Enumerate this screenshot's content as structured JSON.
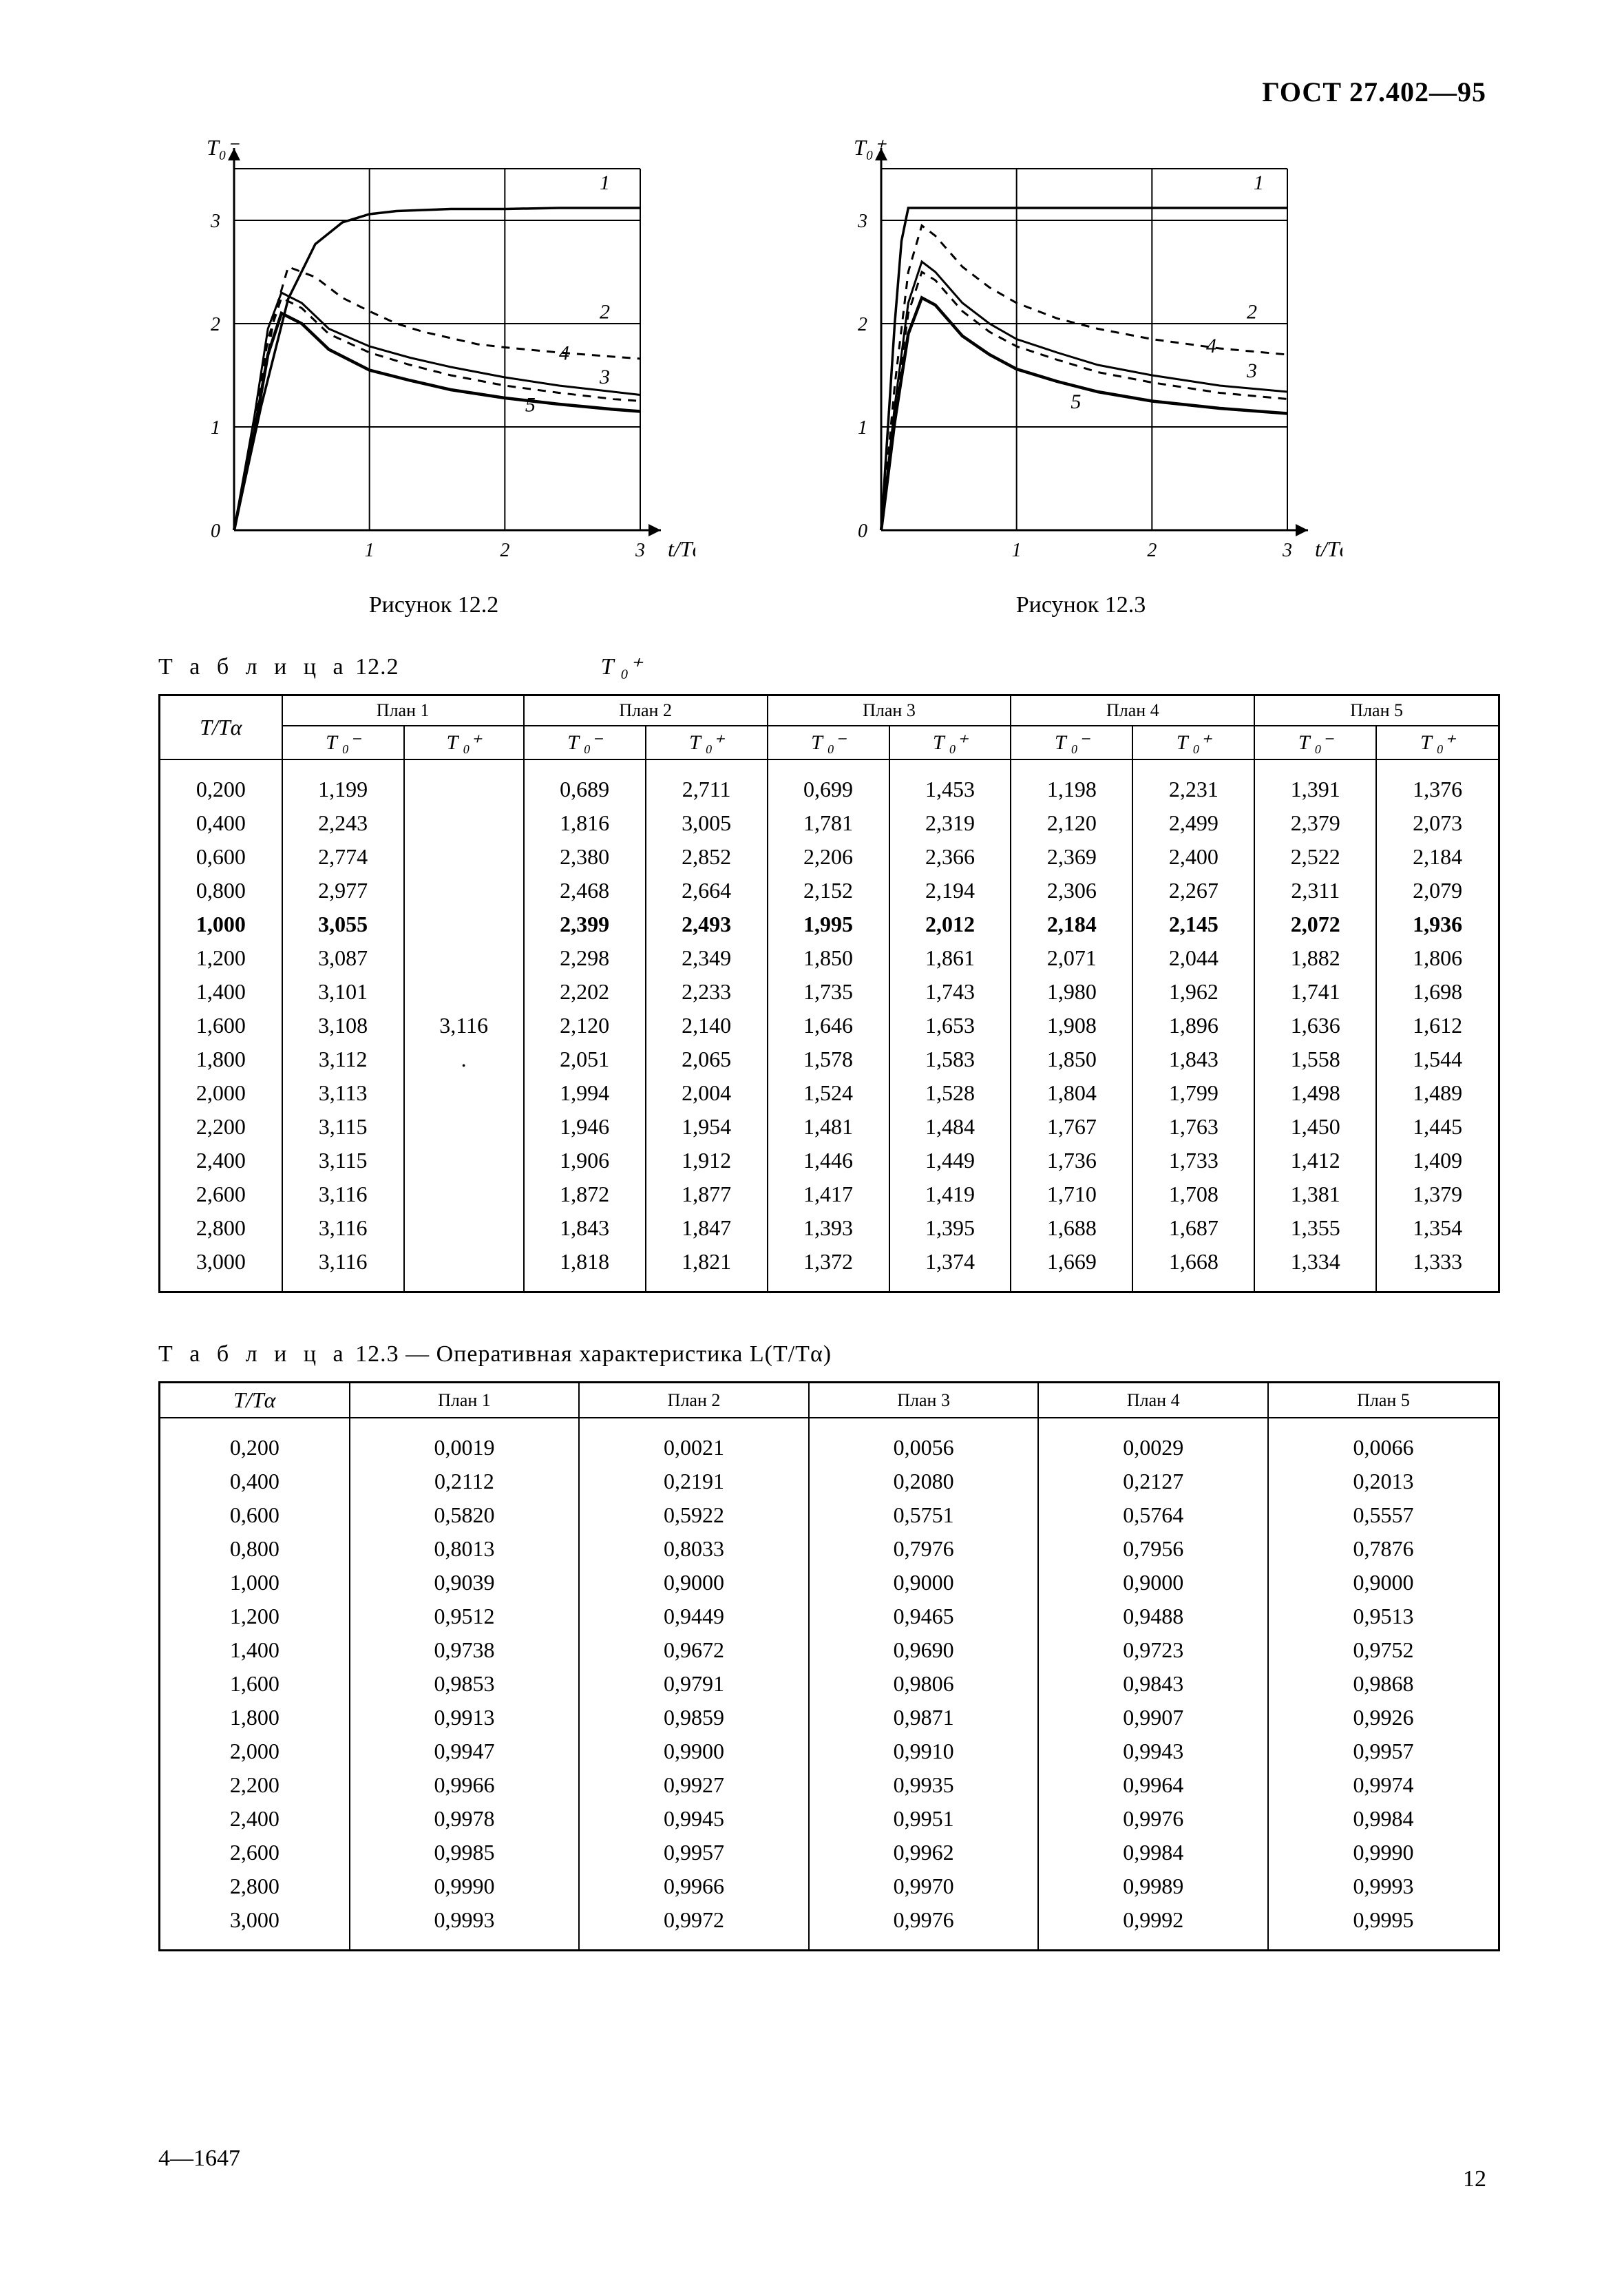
{
  "doc_id": "ГОСТ 27.402—95",
  "footer_left": "4—1647",
  "footer_page": "12",
  "chart_left": {
    "caption": "Рисунок 12.2",
    "y_label": "T₀⁻",
    "x_label": "t/Tα",
    "xlim": [
      0,
      3
    ],
    "ylim": [
      0,
      3.6
    ],
    "xticks": [
      0,
      1,
      2,
      3
    ],
    "yticks": [
      0,
      1,
      2,
      3
    ],
    "fontsize_axis": 28,
    "fontsize_curve_label": 30,
    "stroke_color": "#000000",
    "stroke_width": 3,
    "curves": [
      {
        "label": "1",
        "dash": "",
        "width": 3.5,
        "x": [
          0.0,
          0.2,
          0.4,
          0.6,
          0.8,
          1.0,
          1.2,
          1.4,
          1.6,
          1.8,
          2.0,
          2.4,
          2.8,
          3.0
        ],
        "y": [
          0.0,
          1.2,
          2.24,
          2.77,
          2.98,
          3.06,
          3.09,
          3.1,
          3.11,
          3.11,
          3.11,
          3.12,
          3.12,
          3.12
        ],
        "label_at": [
          2.7,
          3.3
        ]
      },
      {
        "label": "2",
        "dash": "12 10",
        "width": 3,
        "x": [
          0.0,
          0.2,
          0.3,
          0.4,
          0.6,
          0.8,
          1.0,
          1.2,
          1.4,
          1.6,
          1.8,
          2.0,
          2.4,
          2.8,
          3.0
        ],
        "y": [
          0.0,
          1.3,
          2.1,
          2.55,
          2.45,
          2.25,
          2.12,
          2.0,
          1.92,
          1.86,
          1.8,
          1.77,
          1.72,
          1.68,
          1.66
        ],
        "label_at": [
          2.7,
          2.05
        ]
      },
      {
        "label": "3",
        "dash": "",
        "width": 3,
        "x": [
          0.0,
          0.15,
          0.25,
          0.35,
          0.5,
          0.7,
          1.0,
          1.3,
          1.6,
          2.0,
          2.4,
          2.8,
          3.0
        ],
        "y": [
          0.0,
          1.1,
          1.95,
          2.3,
          2.2,
          1.95,
          1.78,
          1.67,
          1.58,
          1.48,
          1.4,
          1.34,
          1.31
        ],
        "label_at": [
          2.7,
          1.42
        ]
      },
      {
        "label": "4",
        "dash": "12 10",
        "width": 3,
        "x": [
          0.0,
          0.15,
          0.25,
          0.35,
          0.5,
          0.7,
          1.0,
          1.3,
          1.6,
          2.0,
          2.4,
          2.8,
          3.0
        ],
        "y": [
          0.0,
          1.05,
          1.85,
          2.25,
          2.15,
          1.9,
          1.72,
          1.6,
          1.5,
          1.4,
          1.33,
          1.27,
          1.25
        ],
        "label_at": [
          2.4,
          1.65
        ]
      },
      {
        "label": "5",
        "dash": "",
        "width": 4.5,
        "x": [
          0.0,
          0.15,
          0.25,
          0.35,
          0.5,
          0.7,
          1.0,
          1.3,
          1.6,
          2.0,
          2.4,
          2.8,
          3.0
        ],
        "y": [
          0.0,
          0.95,
          1.7,
          2.1,
          2.0,
          1.75,
          1.55,
          1.45,
          1.36,
          1.28,
          1.22,
          1.17,
          1.15
        ],
        "label_at": [
          2.15,
          1.15
        ]
      }
    ]
  },
  "chart_right": {
    "caption": "Рисунок 12.3",
    "y_label": "T₀⁺",
    "x_label": "t/Tα",
    "xlim": [
      0,
      3
    ],
    "ylim": [
      0,
      3.6
    ],
    "xticks": [
      0,
      1,
      2,
      3
    ],
    "yticks": [
      0,
      1,
      2,
      3
    ],
    "fontsize_axis": 28,
    "fontsize_curve_label": 30,
    "stroke_color": "#000000",
    "stroke_width": 3,
    "curves": [
      {
        "label": "1",
        "dash": "",
        "width": 3.5,
        "x": [
          0.0,
          0.1,
          0.15,
          0.2,
          3.0
        ],
        "y": [
          0.0,
          2.0,
          2.8,
          3.12,
          3.12
        ],
        "label_at": [
          2.75,
          3.3
        ]
      },
      {
        "label": "2",
        "dash": "12 10",
        "width": 3,
        "x": [
          0.0,
          0.1,
          0.2,
          0.3,
          0.4,
          0.6,
          0.8,
          1.0,
          1.3,
          1.6,
          2.0,
          2.5,
          3.0
        ],
        "y": [
          0.0,
          1.4,
          2.5,
          2.95,
          2.85,
          2.55,
          2.35,
          2.2,
          2.05,
          1.95,
          1.85,
          1.76,
          1.7
        ],
        "label_at": [
          2.7,
          2.05
        ]
      },
      {
        "label": "3",
        "dash": "",
        "width": 3,
        "x": [
          0.0,
          0.1,
          0.2,
          0.3,
          0.4,
          0.6,
          0.8,
          1.0,
          1.3,
          1.6,
          2.0,
          2.5,
          3.0
        ],
        "y": [
          0.0,
          1.2,
          2.2,
          2.6,
          2.5,
          2.2,
          2.0,
          1.85,
          1.72,
          1.6,
          1.5,
          1.4,
          1.34
        ],
        "label_at": [
          2.7,
          1.48
        ]
      },
      {
        "label": "4",
        "dash": "12 10",
        "width": 3,
        "x": [
          0.0,
          0.1,
          0.2,
          0.3,
          0.4,
          0.6,
          0.8,
          1.0,
          1.3,
          1.6,
          2.0,
          2.5,
          3.0
        ],
        "y": [
          0.0,
          1.15,
          2.1,
          2.5,
          2.42,
          2.12,
          1.92,
          1.78,
          1.65,
          1.53,
          1.43,
          1.33,
          1.27
        ],
        "label_at": [
          2.4,
          1.72
        ]
      },
      {
        "label": "5",
        "dash": "",
        "width": 4.5,
        "x": [
          0.0,
          0.1,
          0.2,
          0.3,
          0.4,
          0.6,
          0.8,
          1.0,
          1.3,
          1.6,
          2.0,
          2.5,
          3.0
        ],
        "y": [
          0.0,
          1.05,
          1.9,
          2.25,
          2.18,
          1.88,
          1.7,
          1.56,
          1.44,
          1.34,
          1.25,
          1.18,
          1.13
        ],
        "label_at": [
          1.4,
          1.18
        ]
      }
    ]
  },
  "table122": {
    "caption_spaced": "Т а б л и ц а",
    "caption_rest": " 12.2",
    "top_sym": "T ₀⁺",
    "head_first": "T/Tα",
    "plans": [
      "План 1",
      "План 2",
      "План 3",
      "План 4",
      "План 5"
    ],
    "sub": [
      "T ₀⁻",
      "T ₀⁺"
    ],
    "bold_row_index": 4,
    "rows": [
      [
        "0,200",
        "1,199",
        "",
        "0,689",
        "2,711",
        "0,699",
        "1,453",
        "1,198",
        "2,231",
        "1,391",
        "1,376"
      ],
      [
        "0,400",
        "2,243",
        "",
        "1,816",
        "3,005",
        "1,781",
        "2,319",
        "2,120",
        "2,499",
        "2,379",
        "2,073"
      ],
      [
        "0,600",
        "2,774",
        "",
        "2,380",
        "2,852",
        "2,206",
        "2,366",
        "2,369",
        "2,400",
        "2,522",
        "2,184"
      ],
      [
        "0,800",
        "2,977",
        "",
        "2,468",
        "2,664",
        "2,152",
        "2,194",
        "2,306",
        "2,267",
        "2,311",
        "2,079"
      ],
      [
        "1,000",
        "3,055",
        "",
        "2,399",
        "2,493",
        "1,995",
        "2,012",
        "2,184",
        "2,145",
        "2,072",
        "1,936"
      ],
      [
        "1,200",
        "3,087",
        "",
        "2,298",
        "2,349",
        "1,850",
        "1,861",
        "2,071",
        "2,044",
        "1,882",
        "1,806"
      ],
      [
        "1,400",
        "3,101",
        "",
        "2,202",
        "2,233",
        "1,735",
        "1,743",
        "1,980",
        "1,962",
        "1,741",
        "1,698"
      ],
      [
        "1,600",
        "3,108",
        "3,116",
        "2,120",
        "2,140",
        "1,646",
        "1,653",
        "1,908",
        "1,896",
        "1,636",
        "1,612"
      ],
      [
        "1,800",
        "3,112",
        ".",
        "2,051",
        "2,065",
        "1,578",
        "1,583",
        "1,850",
        "1,843",
        "1,558",
        "1,544"
      ],
      [
        "2,000",
        "3,113",
        "",
        "1,994",
        "2,004",
        "1,524",
        "1,528",
        "1,804",
        "1,799",
        "1,498",
        "1,489"
      ],
      [
        "2,200",
        "3,115",
        "",
        "1,946",
        "1,954",
        "1,481",
        "1,484",
        "1,767",
        "1,763",
        "1,450",
        "1,445"
      ],
      [
        "2,400",
        "3,115",
        "",
        "1,906",
        "1,912",
        "1,446",
        "1,449",
        "1,736",
        "1,733",
        "1,412",
        "1,409"
      ],
      [
        "2,600",
        "3,116",
        "",
        "1,872",
        "1,877",
        "1,417",
        "1,419",
        "1,710",
        "1,708",
        "1,381",
        "1,379"
      ],
      [
        "2,800",
        "3,116",
        "",
        "1,843",
        "1,847",
        "1,393",
        "1,395",
        "1,688",
        "1,687",
        "1,355",
        "1,354"
      ],
      [
        "3,000",
        "3,116",
        "",
        "1,818",
        "1,821",
        "1,372",
        "1,374",
        "1,669",
        "1,668",
        "1,334",
        "1,333"
      ]
    ]
  },
  "table123": {
    "caption_spaced": "Т а б л и ц а",
    "caption_rest": " 12.3 — Оперативная характеристика L(T/Tα)",
    "head_first": "T/Tα",
    "plans": [
      "План 1",
      "План 2",
      "План 3",
      "План 4",
      "План 5"
    ],
    "rows": [
      [
        "0,200",
        "0,0019",
        "0,0021",
        "0,0056",
        "0,0029",
        "0,0066"
      ],
      [
        "0,400",
        "0,2112",
        "0,2191",
        "0,2080",
        "0,2127",
        "0,2013"
      ],
      [
        "0,600",
        "0,5820",
        "0,5922",
        "0,5751",
        "0,5764",
        "0,5557"
      ],
      [
        "0,800",
        "0,8013",
        "0,8033",
        "0,7976",
        "0,7956",
        "0,7876"
      ],
      [
        "1,000",
        "0,9039",
        "0,9000",
        "0,9000",
        "0,9000",
        "0,9000"
      ],
      [
        "1,200",
        "0,9512",
        "0,9449",
        "0,9465",
        "0,9488",
        "0,9513"
      ],
      [
        "1,400",
        "0,9738",
        "0,9672",
        "0,9690",
        "0,9723",
        "0,9752"
      ],
      [
        "1,600",
        "0,9853",
        "0,9791",
        "0,9806",
        "0,9843",
        "0,9868"
      ],
      [
        "1,800",
        "0,9913",
        "0,9859",
        "0,9871",
        "0,9907",
        "0,9926"
      ],
      [
        "2,000",
        "0,9947",
        "0,9900",
        "0,9910",
        "0,9943",
        "0,9957"
      ],
      [
        "2,200",
        "0,9966",
        "0,9927",
        "0,9935",
        "0,9964",
        "0,9974"
      ],
      [
        "2,400",
        "0,9978",
        "0,9945",
        "0,9951",
        "0,9976",
        "0,9984"
      ],
      [
        "2,600",
        "0,9985",
        "0,9957",
        "0,9962",
        "0,9984",
        "0,9990"
      ],
      [
        "2,800",
        "0,9990",
        "0,9966",
        "0,9970",
        "0,9989",
        "0,9993"
      ],
      [
        "3,000",
        "0,9993",
        "0,9972",
        "0,9976",
        "0,9992",
        "0,9995"
      ]
    ]
  }
}
